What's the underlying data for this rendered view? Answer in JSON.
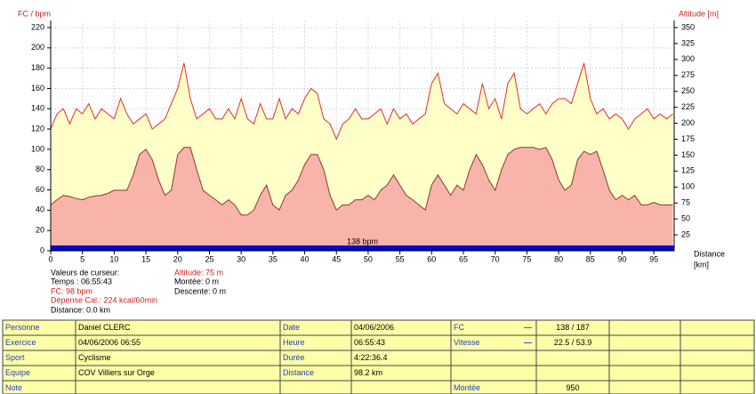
{
  "chart_data": {
    "type": "area",
    "ylabel": "FC / bpm",
    "y2label": "Altitude [m]",
    "xlabel": "Distance",
    "xunit": "[km]",
    "annotation": "138 bpm",
    "xlim": [
      0,
      98.2
    ],
    "xticks": [
      0,
      5,
      10,
      15,
      20,
      25,
      30,
      35,
      40,
      45,
      50,
      55,
      60,
      65,
      70,
      75,
      80,
      85,
      90,
      95
    ],
    "ylim": [
      0,
      220
    ],
    "yticks": [
      0,
      20,
      40,
      60,
      80,
      100,
      120,
      140,
      160,
      180,
      200,
      220
    ],
    "y2lim": [
      0,
      350
    ],
    "y2ticks": [
      25,
      50,
      75,
      100,
      125,
      150,
      175,
      200,
      225,
      250,
      275,
      300,
      325,
      350
    ],
    "grid": true,
    "x": [
      0,
      1,
      2,
      3,
      4,
      5,
      6,
      7,
      8,
      9,
      10,
      11,
      12,
      13,
      14,
      15,
      16,
      17,
      18,
      19,
      20,
      21,
      22,
      23,
      24,
      25,
      26,
      27,
      28,
      29,
      30,
      31,
      32,
      33,
      34,
      35,
      36,
      37,
      38,
      39,
      40,
      41,
      42,
      43,
      44,
      45,
      46,
      47,
      48,
      49,
      50,
      51,
      52,
      53,
      54,
      55,
      56,
      57,
      58,
      59,
      60,
      61,
      62,
      63,
      64,
      65,
      66,
      67,
      68,
      69,
      70,
      71,
      72,
      73,
      74,
      75,
      76,
      77,
      78,
      79,
      80,
      81,
      82,
      83,
      84,
      85,
      86,
      87,
      88,
      89,
      90,
      91,
      92,
      93,
      94,
      95,
      96,
      97,
      98
    ],
    "series": [
      {
        "name": "FC",
        "color": "#e03030",
        "fill": "#ffffc8",
        "values": [
          120,
          135,
          140,
          125,
          140,
          135,
          145,
          130,
          140,
          135,
          130,
          150,
          135,
          125,
          130,
          135,
          120,
          125,
          130,
          145,
          160,
          185,
          150,
          130,
          135,
          140,
          130,
          130,
          140,
          130,
          150,
          130,
          125,
          145,
          130,
          130,
          150,
          130,
          140,
          135,
          150,
          160,
          155,
          130,
          125,
          110,
          125,
          130,
          140,
          130,
          130,
          135,
          140,
          125,
          140,
          130,
          135,
          125,
          130,
          135,
          165,
          175,
          145,
          140,
          135,
          145,
          140,
          135,
          165,
          140,
          150,
          130,
          165,
          175,
          140,
          135,
          140,
          145,
          135,
          145,
          150,
          150,
          145,
          165,
          185,
          150,
          135,
          140,
          130,
          135,
          130,
          120,
          130,
          135,
          140,
          130,
          135,
          130,
          135
        ]
      },
      {
        "name": "Altitude",
        "color": "#8b3a2a",
        "fill": "#f8b4aa",
        "axis": "y2",
        "values": [
          72,
          80,
          87,
          85,
          82,
          80,
          84,
          86,
          87,
          90,
          95,
          95,
          95,
          119,
          151,
          159,
          143,
          111,
          87,
          95,
          151,
          162,
          162,
          127,
          95,
          87,
          80,
          72,
          80,
          72,
          56,
          56,
          64,
          87,
          103,
          72,
          64,
          87,
          95,
          111,
          135,
          151,
          151,
          127,
          87,
          64,
          72,
          72,
          80,
          80,
          87,
          80,
          95,
          103,
          119,
          103,
          87,
          80,
          72,
          64,
          103,
          119,
          103,
          87,
          103,
          95,
          127,
          151,
          135,
          111,
          95,
          127,
          151,
          159,
          162,
          162,
          162,
          159,
          162,
          143,
          111,
          95,
          103,
          143,
          156,
          151,
          156,
          127,
          95,
          80,
          87,
          80,
          87,
          72,
          72,
          76,
          72,
          72,
          72
        ]
      }
    ]
  },
  "cursor": {
    "title": "Valeurs de curseur:",
    "time": "Temps : 06:55:43",
    "hr": "FC: 98 bpm",
    "calories": "Dépense Cal.: 224 kcal/60min",
    "distance": "Distance: 0.0 km",
    "altitude": "Altitude: 75 m",
    "ascent": "Montée: 0 m",
    "descent": "Descente: 0 m"
  },
  "table": {
    "rows": [
      {
        "k1": "Personne",
        "v1": "Daniel CLERC",
        "k2": "Date",
        "v2": "04/06/2006",
        "k3": "FC",
        "k3_color": "#e03030",
        "v3": "138 / 187"
      },
      {
        "k1": "Exercice",
        "v1": "04/06/2006 06:55",
        "k2": "Heure",
        "v2": "06:55:43",
        "k3": "Vitesse",
        "k3_color": "#3050d0",
        "v3": "22.5 / 53.9"
      },
      {
        "k1": "Sport",
        "v1": "Cyclisme",
        "k2": "Durée",
        "v2": "4:22:36.4"
      },
      {
        "k1": "Equipe",
        "v1": "COV Villiers sur Orge",
        "k2": "Distance",
        "v2": "98.2 km"
      },
      {
        "k1": "Note",
        "k3": "Montée",
        "v3": "950"
      }
    ]
  }
}
